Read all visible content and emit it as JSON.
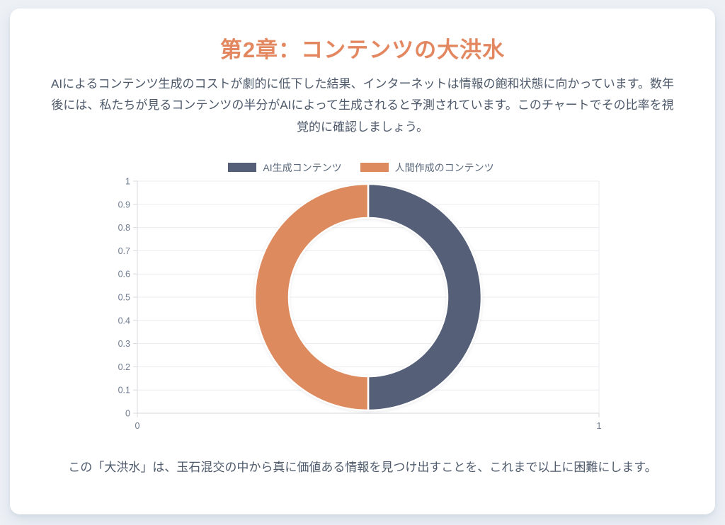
{
  "page": {
    "title": "第2章：コンテンツの大洪水",
    "intro": "AIによるコンテンツ生成のコストが劇的に低下した結果、インターネットは情報の飽和状態に向かっています。数年後には、私たちが見るコンテンツの半分がAIによって生成されると予測されています。このチャートでその比率を視覚的に確認しましょう。",
    "outro": "この「大洪水」は、玉石混交の中から真に価値ある情報を見つけ出すことを、これまで以上に困難にします。"
  },
  "colors": {
    "title_orange": "#E2875F",
    "series_slate": "#556078",
    "series_orange": "#DD8A5E",
    "background": "#EDF1F6",
    "card": "#FFFFFF",
    "grid": "#ECECF0",
    "axis": "#D8DADE",
    "tick_text": "#6E7B91",
    "body_text": "#4E5A6B",
    "legend_text": "#5C6A7C",
    "segment_border": "#FFFFFF"
  },
  "chart_data": {
    "type": "pie",
    "variant": "doughnut",
    "title": "",
    "legend_position": "top",
    "grid": true,
    "cutout_ratio": 0.7,
    "series": [
      {
        "name": "AI生成コンテンツ",
        "value": 0.5,
        "color": "#556078"
      },
      {
        "name": "人間作成のコンテンツ",
        "value": 0.5,
        "color": "#DD8A5E"
      }
    ],
    "y_axis": {
      "min": 0,
      "max": 1,
      "ticks": [
        0,
        0.1,
        0.2,
        0.3,
        0.4,
        0.5,
        0.6,
        0.7,
        0.8,
        0.9,
        1
      ]
    },
    "x_axis": {
      "min": 0,
      "max": 1,
      "ticks": [
        0,
        1
      ]
    }
  }
}
